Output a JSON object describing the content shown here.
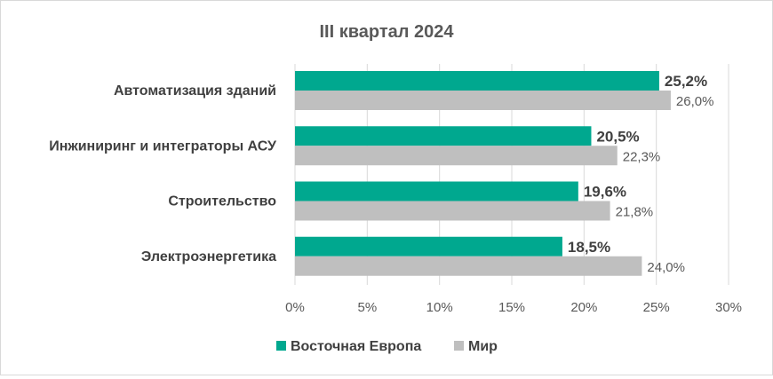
{
  "chart_data": {
    "type": "bar",
    "orientation": "horizontal",
    "title": "III квартал 2024",
    "categories": [
      "Автоматизация зданий",
      "Инжиниринг и интеграторы АСУ",
      "Строительство",
      "Электроэнергетика"
    ],
    "series": [
      {
        "name": "Восточная Европа",
        "color": "#00a88f",
        "values": [
          25.2,
          20.5,
          19.6,
          18.5
        ],
        "labels": [
          "25,2%",
          "20,5%",
          "19,6%",
          "18,5%"
        ]
      },
      {
        "name": "Мир",
        "color": "#bfbfbf",
        "values": [
          26.0,
          22.3,
          21.8,
          24.0
        ],
        "labels": [
          "26,0%",
          "22,3%",
          "21,8%",
          "24,0%"
        ]
      }
    ],
    "xlim": [
      0,
      30
    ],
    "xticks": [
      0,
      5,
      10,
      15,
      20,
      25,
      30
    ],
    "xtick_labels": [
      "0%",
      "5%",
      "10%",
      "15%",
      "20%",
      "25%",
      "30%"
    ],
    "grid": "vertical",
    "legend_position": "bottom"
  }
}
